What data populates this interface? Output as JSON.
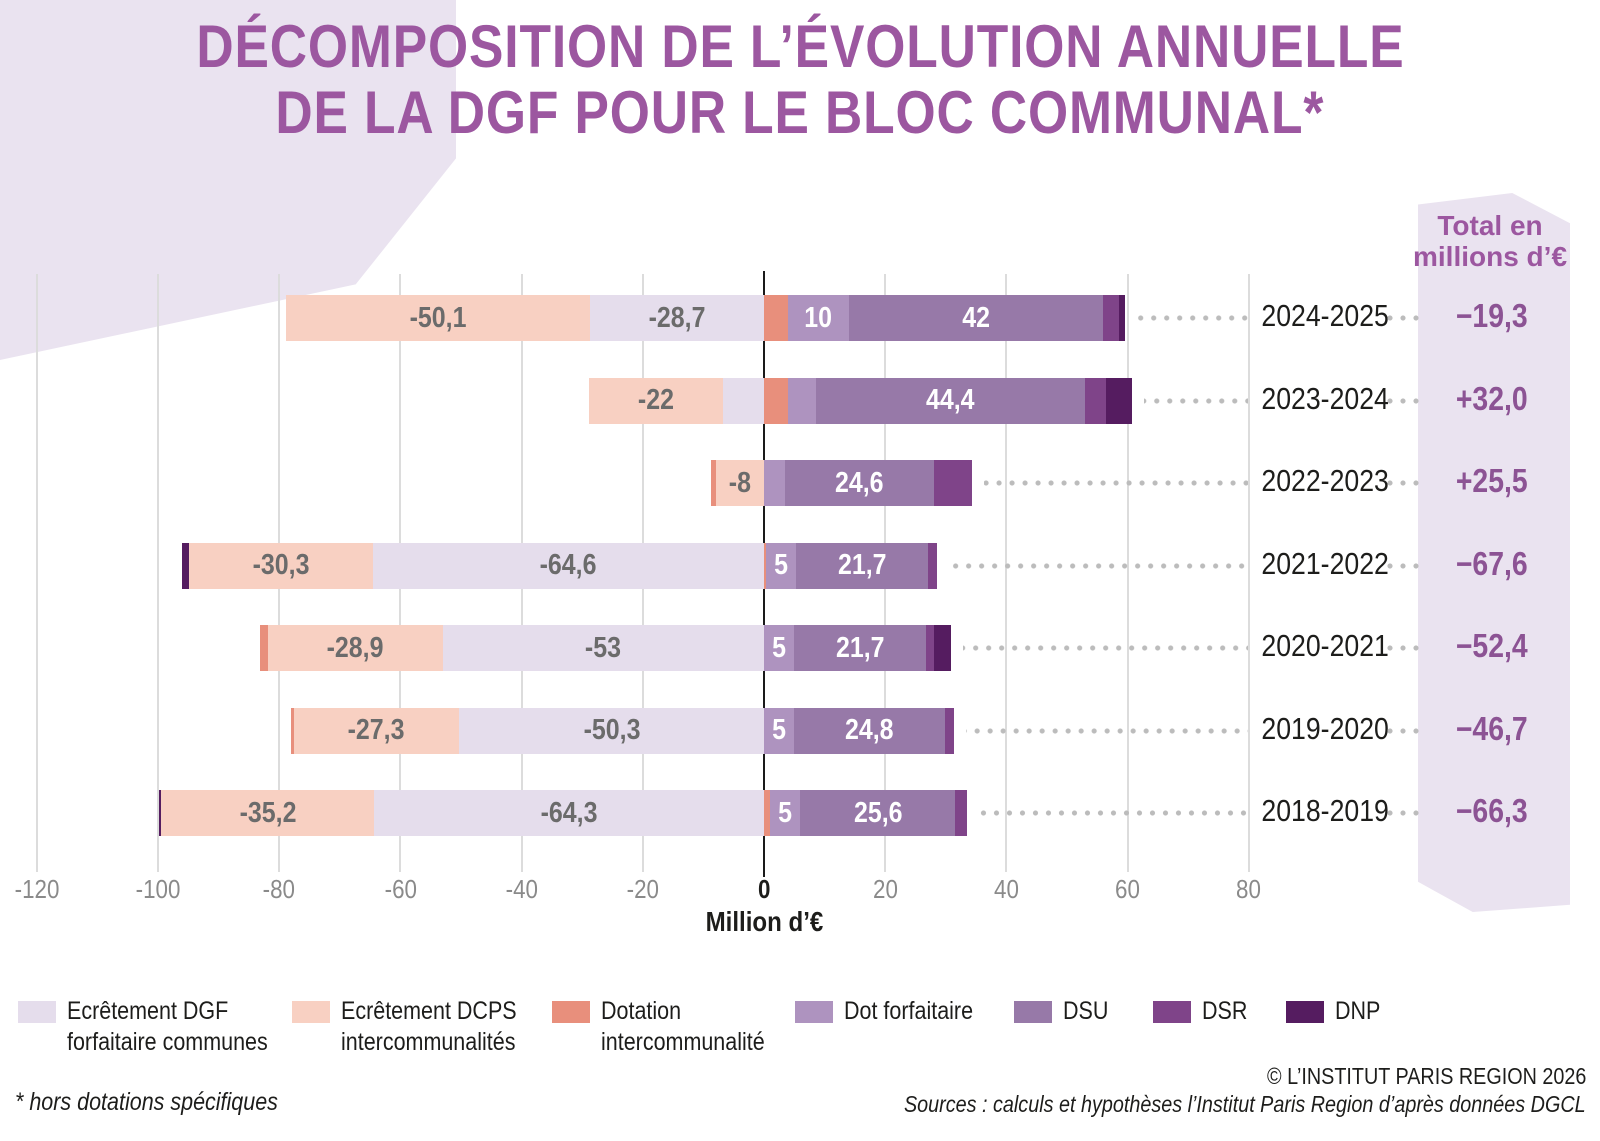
{
  "title": {
    "line1": "DÉCOMPOSITION DE L’ÉVOLUTION ANNUELLE",
    "line2": "DE LA DGF POUR LE BLOC COMMUNAL*"
  },
  "totals_panel": {
    "header_line1": "Total en",
    "header_line2": "millions d’€"
  },
  "legend": [
    {
      "key": "ecr_dgf",
      "label": "Ecrêtement DGF",
      "label2": "forfaitaire communes",
      "color": "#e5ddec"
    },
    {
      "key": "ecr_dcps",
      "label": "Ecrêtement DCPS",
      "label2": "intercommunalités",
      "color": "#f8d0c2"
    },
    {
      "key": "dot_inter",
      "label": "Dotation",
      "label2": "intercommunalité",
      "color": "#e88f7c"
    },
    {
      "key": "dot_forf",
      "label": "Dot forfaitaire",
      "label2": "",
      "color": "#ae93bf"
    },
    {
      "key": "dsu",
      "label": "DSU",
      "label2": "",
      "color": "#9779a8"
    },
    {
      "key": "dsr",
      "label": "DSR",
      "label2": "",
      "color": "#7f4489"
    },
    {
      "key": "dnp",
      "label": "DNP",
      "label2": "",
      "color": "#551c60"
    }
  ],
  "colors": {
    "title_purple": "#9c57a0",
    "totals_purple": "#8c5394",
    "panel_lavender": "#eae3f0",
    "negative_label_gray": "#6b6b6b",
    "positive_label_white": "#ffffff"
  },
  "footnote": "* hors dotations spécifiques",
  "credits": {
    "copyright": "© L’INSTITUT PARIS REGION 2026",
    "sources": "Sources : calculs et hypothèses l’Institut Paris Region d’après données DGCL"
  },
  "chart_data": {
    "type": "bar",
    "variant": "horizontal-diverging-stacked",
    "title": "Décomposition de l’évolution annuelle de la DGF pour le bloc communal (hors dotations spécifiques)",
    "xlabel": "Million d’€",
    "x_axis": {
      "min": -120,
      "max": 80,
      "ticks": [
        {
          "value": -120,
          "label": "-120"
        },
        {
          "value": -100,
          "label": "-100"
        },
        {
          "value": -80,
          "label": "-80"
        },
        {
          "value": -60,
          "label": "-60"
        },
        {
          "value": -40,
          "label": "-40"
        },
        {
          "value": -20,
          "label": "-20"
        },
        {
          "value": 0,
          "label": "0"
        },
        {
          "value": 20,
          "label": "20"
        },
        {
          "value": 40,
          "label": "40"
        },
        {
          "value": 60,
          "label": "60"
        },
        {
          "value": 80,
          "label": "80"
        }
      ]
    },
    "grid": true,
    "legend_position": "bottom",
    "rows": [
      {
        "year": "2024-2025",
        "total_value": -19.3,
        "total_label": "−19,3",
        "segments": [
          {
            "key": "ecr_dcps",
            "value": -50.1,
            "label": "-50,1"
          },
          {
            "key": "ecr_dgf",
            "value": -28.7,
            "label": "-28,7"
          },
          {
            "key": "dot_inter",
            "value": 4.0
          },
          {
            "key": "dot_forf",
            "value": 10,
            "label": "10"
          },
          {
            "key": "dsu",
            "value": 42,
            "label": "42"
          },
          {
            "key": "dsr",
            "value": 2.5
          },
          {
            "key": "dnp",
            "value": 1.0
          }
        ]
      },
      {
        "year": "2023-2024",
        "total_value": 32.0,
        "total_label": "+32,0",
        "segments": [
          {
            "key": "ecr_dcps",
            "value": -22,
            "label": "-22"
          },
          {
            "key": "ecr_dgf",
            "value": -6.8
          },
          {
            "key": "dot_inter",
            "value": 3.9
          },
          {
            "key": "dot_forf",
            "value": 4.7
          },
          {
            "key": "dsu",
            "value": 44.4,
            "label": "44,4"
          },
          {
            "key": "dsr",
            "value": 3.4
          },
          {
            "key": "dnp",
            "value": 4.4
          }
        ]
      },
      {
        "year": "2022-2023",
        "total_value": 25.5,
        "total_label": "+25,5",
        "segments": [
          {
            "key": "dot_inter",
            "value": -0.8
          },
          {
            "key": "ecr_dcps",
            "value": -8,
            "label": "-8"
          },
          {
            "key": "dot_forf",
            "value": 3.4
          },
          {
            "key": "dsu",
            "value": 24.6,
            "label": "24,6"
          },
          {
            "key": "dsr",
            "value": 6.3
          }
        ]
      },
      {
        "year": "2021-2022",
        "total_value": -67.6,
        "total_label": "−67,6",
        "segments": [
          {
            "key": "dnp",
            "value": -1.2
          },
          {
            "key": "ecr_dcps",
            "value": -30.3,
            "label": "-30,3"
          },
          {
            "key": "ecr_dgf",
            "value": -64.6,
            "label": "-64,6"
          },
          {
            "key": "dot_inter",
            "value": 0.3
          },
          {
            "key": "dot_forf",
            "value": 5,
            "label": "5"
          },
          {
            "key": "dsu",
            "value": 21.7,
            "label": "21,7"
          },
          {
            "key": "dsr",
            "value": 1.5
          }
        ]
      },
      {
        "year": "2020-2021",
        "total_value": -52.4,
        "total_label": "−52,4",
        "segments": [
          {
            "key": "dot_inter",
            "value": -1.3
          },
          {
            "key": "ecr_dcps",
            "value": -28.9,
            "label": "-28,9"
          },
          {
            "key": "ecr_dgf",
            "value": -53,
            "label": "-53"
          },
          {
            "key": "dot_forf",
            "value": 5,
            "label": "5"
          },
          {
            "key": "dsu",
            "value": 21.7,
            "label": "21,7"
          },
          {
            "key": "dsr",
            "value": 1.3
          },
          {
            "key": "dnp",
            "value": 2.8
          }
        ]
      },
      {
        "year": "2019-2020",
        "total_value": -46.7,
        "total_label": "−46,7",
        "segments": [
          {
            "key": "dot_inter",
            "value": -0.4
          },
          {
            "key": "ecr_dcps",
            "value": -27.3,
            "label": "-27,3"
          },
          {
            "key": "ecr_dgf",
            "value": -50.3,
            "label": "-50,3"
          },
          {
            "key": "dot_forf",
            "value": 5,
            "label": "5"
          },
          {
            "key": "dsu",
            "value": 24.8,
            "label": "24,8"
          },
          {
            "key": "dsr",
            "value": 1.5
          }
        ]
      },
      {
        "year": "2018-2019",
        "total_value": -66.3,
        "total_label": "−66,3",
        "segments": [
          {
            "key": "dnp",
            "value": -0.3
          },
          {
            "key": "ecr_dcps",
            "value": -35.2,
            "label": "-35,2"
          },
          {
            "key": "ecr_dgf",
            "value": -64.3,
            "label": "-64,3"
          },
          {
            "key": "dot_inter",
            "value": 1.0
          },
          {
            "key": "dot_forf",
            "value": 5,
            "label": "5"
          },
          {
            "key": "dsu",
            "value": 25.6,
            "label": "25,6"
          },
          {
            "key": "dsr",
            "value": 1.9
          }
        ]
      }
    ]
  }
}
